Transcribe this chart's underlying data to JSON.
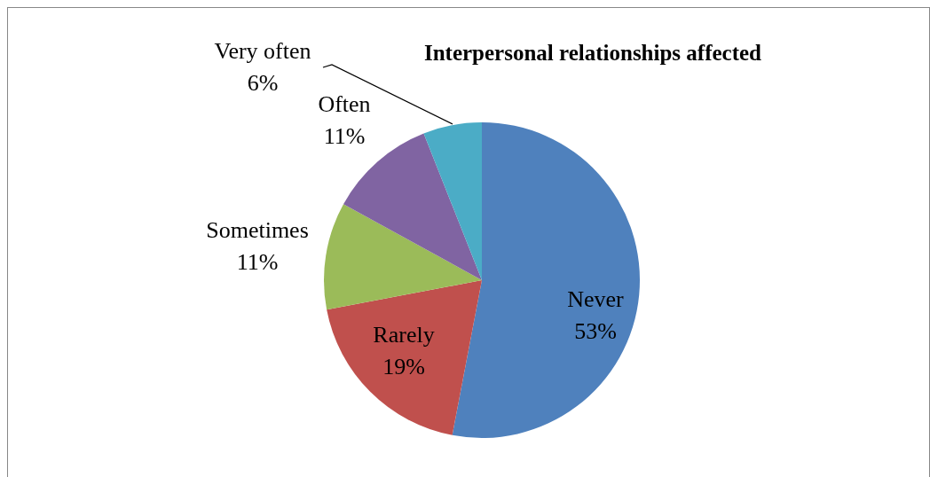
{
  "chart_data": {
    "type": "pie",
    "title": "Interpersonal relationships affected",
    "categories": [
      "Never",
      "Rarely",
      "Sometimes",
      "Often",
      "Very often"
    ],
    "values": [
      53,
      19,
      11,
      11,
      6
    ],
    "value_labels": [
      "53%",
      "19%",
      "11%",
      "11%",
      "6%"
    ],
    "colors": [
      "#4f81bd",
      "#c0504d",
      "#9bbb59",
      "#8064a2",
      "#4bacc6"
    ],
    "legend": false
  }
}
